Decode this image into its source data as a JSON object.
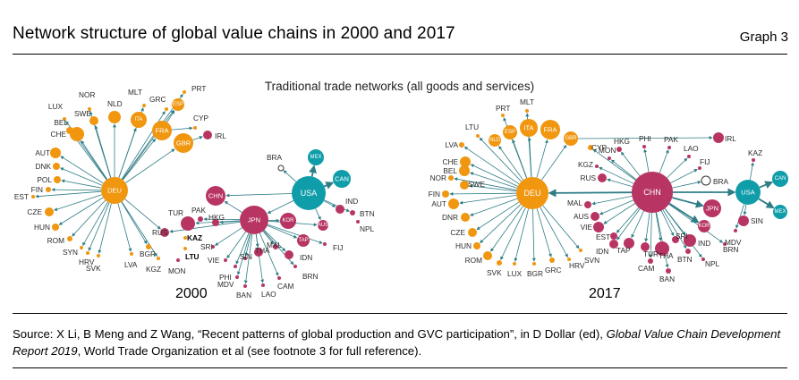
{
  "header": {
    "title": "Network structure of global value chains in 2000 and 2017",
    "graph_number": "Graph 3"
  },
  "diagram": {
    "subtitle": "Traditional trade networks (all goods and services)",
    "colors": {
      "europe": "#f0960f",
      "asia": "#b83563",
      "americas": "#0f9daa",
      "edge": "#2f7d86",
      "other": "#ffffff"
    },
    "panels": [
      {
        "year": "2000",
        "hubs": [
          "DEU",
          "USA",
          "JPN"
        ],
        "labelled_nodes": [
          "DEU",
          "USA",
          "JPN",
          "CHN",
          "ITA",
          "FRA",
          "GBR",
          "ESP",
          "MEX",
          "CAN",
          "KOR",
          "TAP",
          "AUS"
        ],
        "labels": [
          "NOR",
          "LUX",
          "SWE",
          "BEL",
          "CHE",
          "AUT",
          "DNK",
          "POL",
          "FIN",
          "EST",
          "CZE",
          "HUN",
          "ROM",
          "SYN",
          "HRV",
          "SVK",
          "LVA",
          "BGR",
          "KGZ",
          "MON",
          "LTU",
          "KAZ",
          "RUS",
          "TUR",
          "PAK",
          "HKG",
          "SRI",
          "VIE",
          "PHI",
          "SIN",
          "THA",
          "MDV",
          "BAN",
          "LAO",
          "CAM",
          "BRN",
          "IDN",
          "MAL",
          "FIJ",
          "IND",
          "BTN",
          "NPL",
          "BRA",
          "MLT",
          "GRC",
          "PRT",
          "CYP",
          "IRL",
          "NLD"
        ]
      },
      {
        "year": "2017",
        "hubs": [
          "CHN",
          "DEU",
          "USA"
        ],
        "labelled_nodes": [
          "CHN",
          "DEU",
          "USA",
          "JPN",
          "KOR",
          "ITA",
          "FRA",
          "GBR",
          "ESP",
          "NLD",
          "CAN",
          "MEX"
        ],
        "labels": [
          "PRT",
          "MLT",
          "LTU",
          "LVA",
          "CHE",
          "BEL",
          "NOR",
          "SWE",
          "FIN",
          "AUT",
          "DNR",
          "CZE",
          "HUN",
          "ROM",
          "SVK",
          "LUX",
          "BGR",
          "GRC",
          "HRV",
          "SVN",
          "CYP",
          "HKG",
          "PHI",
          "PAK",
          "LAO",
          "MON",
          "KGZ",
          "FIJ",
          "IRL",
          "KAZ",
          "RUS",
          "MAL",
          "AUS",
          "VIE",
          "EST",
          "IDN",
          "TAP",
          "TUR",
          "CAM",
          "THA",
          "BAN",
          "SRI",
          "BTN",
          "NPL",
          "IND",
          "BRN",
          "MDV",
          "SIN",
          "BRA"
        ]
      }
    ]
  },
  "footer": {
    "source_prefix": "Source: X Li, B Meng and Z Wang, “Recent patterns of global production and GVC participation”, in D Dollar (ed), ",
    "source_italic": "Global Value Chain Development Report 2019",
    "source_suffix": ", World Trade Organization et al (see footnote 3 for full reference)."
  }
}
